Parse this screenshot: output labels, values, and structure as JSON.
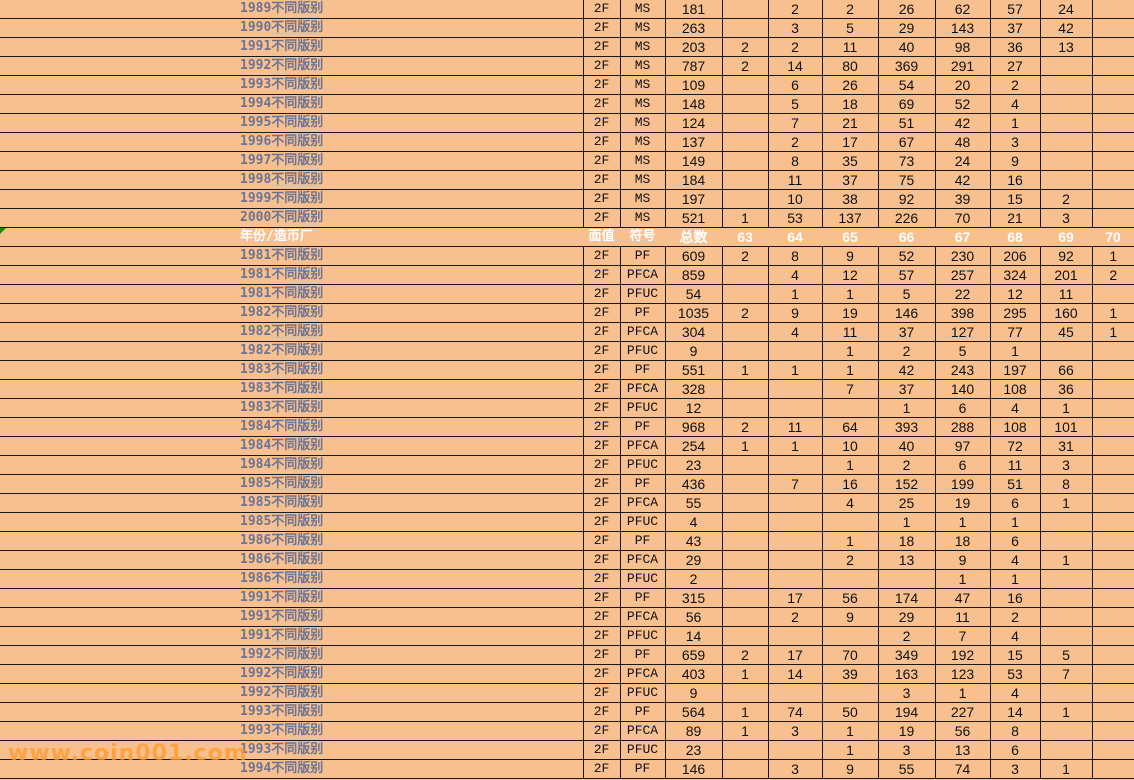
{
  "header": [
    "年份/造币厂",
    "面值",
    "符号",
    "总数",
    "63",
    "64",
    "65",
    "66",
    "67",
    "68",
    "69",
    "70"
  ],
  "header_row_index": 12,
  "rows": [
    [
      "1989不同版别",
      "2F",
      "MS",
      "181",
      "",
      "2",
      "2",
      "26",
      "62",
      "57",
      "24",
      ""
    ],
    [
      "1990不同版别",
      "2F",
      "MS",
      "263",
      "",
      "3",
      "5",
      "29",
      "143",
      "37",
      "42",
      ""
    ],
    [
      "1991不同版别",
      "2F",
      "MS",
      "203",
      "2",
      "2",
      "11",
      "40",
      "98",
      "36",
      "13",
      ""
    ],
    [
      "1992不同版别",
      "2F",
      "MS",
      "787",
      "2",
      "14",
      "80",
      "369",
      "291",
      "27",
      "",
      ""
    ],
    [
      "1993不同版别",
      "2F",
      "MS",
      "109",
      "",
      "6",
      "26",
      "54",
      "20",
      "2",
      "",
      ""
    ],
    [
      "1994不同版别",
      "2F",
      "MS",
      "148",
      "",
      "5",
      "18",
      "69",
      "52",
      "4",
      "",
      ""
    ],
    [
      "1995不同版别",
      "2F",
      "MS",
      "124",
      "",
      "7",
      "21",
      "51",
      "42",
      "1",
      "",
      ""
    ],
    [
      "1996不同版别",
      "2F",
      "MS",
      "137",
      "",
      "2",
      "17",
      "67",
      "48",
      "3",
      "",
      ""
    ],
    [
      "1997不同版别",
      "2F",
      "MS",
      "149",
      "",
      "8",
      "35",
      "73",
      "24",
      "9",
      "",
      ""
    ],
    [
      "1998不同版别",
      "2F",
      "MS",
      "184",
      "",
      "11",
      "37",
      "75",
      "42",
      "16",
      "",
      ""
    ],
    [
      "1999不同版别",
      "2F",
      "MS",
      "197",
      "",
      "10",
      "38",
      "92",
      "39",
      "15",
      "2",
      ""
    ],
    [
      "2000不同版别",
      "2F",
      "MS",
      "521",
      "1",
      "53",
      "137",
      "226",
      "70",
      "21",
      "3",
      ""
    ],
    [
      "1981不同版别",
      "2F",
      "PF",
      "609",
      "2",
      "8",
      "9",
      "52",
      "230",
      "206",
      "92",
      "1"
    ],
    [
      "1981不同版别",
      "2F",
      "PFCA",
      "859",
      "",
      "4",
      "12",
      "57",
      "257",
      "324",
      "201",
      "2"
    ],
    [
      "1981不同版别",
      "2F",
      "PFUC",
      "54",
      "",
      "1",
      "1",
      "5",
      "22",
      "12",
      "11",
      ""
    ],
    [
      "1982不同版别",
      "2F",
      "PF",
      "1035",
      "2",
      "9",
      "19",
      "146",
      "398",
      "295",
      "160",
      "1"
    ],
    [
      "1982不同版别",
      "2F",
      "PFCA",
      "304",
      "",
      "4",
      "11",
      "37",
      "127",
      "77",
      "45",
      "1"
    ],
    [
      "1982不同版别",
      "2F",
      "PFUC",
      "9",
      "",
      "",
      "1",
      "2",
      "5",
      "1",
      "",
      ""
    ],
    [
      "1983不同版别",
      "2F",
      "PF",
      "551",
      "1",
      "1",
      "1",
      "42",
      "243",
      "197",
      "66",
      ""
    ],
    [
      "1983不同版别",
      "2F",
      "PFCA",
      "328",
      "",
      "",
      "7",
      "37",
      "140",
      "108",
      "36",
      ""
    ],
    [
      "1983不同版别",
      "2F",
      "PFUC",
      "12",
      "",
      "",
      "",
      "1",
      "6",
      "4",
      "1",
      ""
    ],
    [
      "1984不同版别",
      "2F",
      "PF",
      "968",
      "2",
      "11",
      "64",
      "393",
      "288",
      "108",
      "101",
      ""
    ],
    [
      "1984不同版别",
      "2F",
      "PFCA",
      "254",
      "1",
      "1",
      "10",
      "40",
      "97",
      "72",
      "31",
      ""
    ],
    [
      "1984不同版别",
      "2F",
      "PFUC",
      "23",
      "",
      "",
      "1",
      "2",
      "6",
      "11",
      "3",
      ""
    ],
    [
      "1985不同版别",
      "2F",
      "PF",
      "436",
      "",
      "7",
      "16",
      "152",
      "199",
      "51",
      "8",
      ""
    ],
    [
      "1985不同版别",
      "2F",
      "PFCA",
      "55",
      "",
      "",
      "4",
      "25",
      "19",
      "6",
      "1",
      ""
    ],
    [
      "1985不同版别",
      "2F",
      "PFUC",
      "4",
      "",
      "",
      "",
      "1",
      "1",
      "1",
      "",
      ""
    ],
    [
      "1986不同版别",
      "2F",
      "PF",
      "43",
      "",
      "",
      "1",
      "18",
      "18",
      "6",
      "",
      ""
    ],
    [
      "1986不同版别",
      "2F",
      "PFCA",
      "29",
      "",
      "",
      "2",
      "13",
      "9",
      "4",
      "1",
      ""
    ],
    [
      "1986不同版别",
      "2F",
      "PFUC",
      "2",
      "",
      "",
      "",
      "",
      "1",
      "1",
      "",
      ""
    ],
    [
      "1991不同版别",
      "2F",
      "PF",
      "315",
      "",
      "17",
      "56",
      "174",
      "47",
      "16",
      "",
      ""
    ],
    [
      "1991不同版别",
      "2F",
      "PFCA",
      "56",
      "",
      "2",
      "9",
      "29",
      "11",
      "2",
      "",
      ""
    ],
    [
      "1991不同版别",
      "2F",
      "PFUC",
      "14",
      "",
      "",
      "",
      "2",
      "7",
      "4",
      "",
      ""
    ],
    [
      "1992不同版别",
      "2F",
      "PF",
      "659",
      "2",
      "17",
      "70",
      "349",
      "192",
      "15",
      "5",
      ""
    ],
    [
      "1992不同版别",
      "2F",
      "PFCA",
      "403",
      "1",
      "14",
      "39",
      "163",
      "123",
      "53",
      "7",
      ""
    ],
    [
      "1992不同版别",
      "2F",
      "PFUC",
      "9",
      "",
      "",
      "",
      "3",
      "1",
      "4",
      "",
      ""
    ],
    [
      "1993不同版别",
      "2F",
      "PF",
      "564",
      "1",
      "74",
      "50",
      "194",
      "227",
      "14",
      "1",
      ""
    ],
    [
      "1993不同版别",
      "2F",
      "PFCA",
      "89",
      "1",
      "3",
      "1",
      "19",
      "56",
      "8",
      "",
      ""
    ],
    [
      "1993不同版别",
      "2F",
      "PFUC",
      "23",
      "",
      "",
      "1",
      "3",
      "13",
      "6",
      "",
      ""
    ],
    [
      "1994不同版别",
      "2F",
      "PF",
      "146",
      "",
      "3",
      "9",
      "55",
      "74",
      "3",
      "1",
      ""
    ]
  ],
  "watermark": "www.coin001.com",
  "colors": {
    "background": "#f8bf8f",
    "label_text": "#6a7494",
    "header_text": "#ffffff",
    "watermark": "#ff9a2a"
  }
}
